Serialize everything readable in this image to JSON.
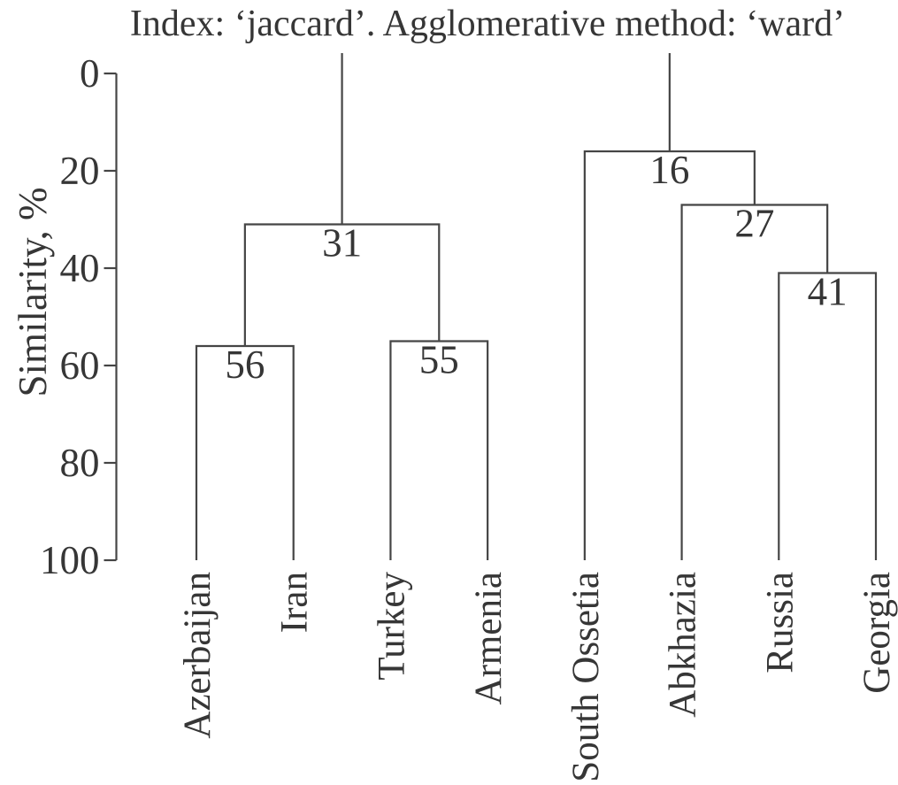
{
  "chart_data": {
    "type": "dendrogram",
    "title": "Index: ‘jaccard’. Agglomerative method: ‘ward’",
    "ylabel": "Similarity, %",
    "y_axis": {
      "ticks": [
        0,
        20,
        40,
        60,
        80,
        100
      ],
      "range": [
        0,
        100
      ],
      "direction": "inverted (0 at top, 100 at bottom)",
      "unit": "%"
    },
    "grid": "off",
    "legend": "none",
    "leaves": [
      "Azerbaijan",
      "Iran",
      "Turkey",
      "Armenia",
      "South Ossetia",
      "Abkhazia",
      "Russia",
      "Georgia"
    ],
    "merges": [
      {
        "id": "M1",
        "children": [
          "Azerbaijan",
          "Iran"
        ],
        "similarity_pct": 56,
        "label": "56"
      },
      {
        "id": "M2",
        "children": [
          "Turkey",
          "Armenia"
        ],
        "similarity_pct": 55,
        "label": "55"
      },
      {
        "id": "M3",
        "children": [
          "M1",
          "M2"
        ],
        "similarity_pct": 31,
        "label": "31"
      },
      {
        "id": "M4",
        "children": [
          "Russia",
          "Georgia"
        ],
        "similarity_pct": 41,
        "label": "41"
      },
      {
        "id": "M5",
        "children": [
          "Abkhazia",
          "M4"
        ],
        "similarity_pct": 27,
        "label": "27"
      },
      {
        "id": "M6",
        "children": [
          "South Ossetia",
          "M5"
        ],
        "similarity_pct": 16,
        "label": "16"
      }
    ],
    "roots": [
      "M3",
      "M6"
    ],
    "colors": {
      "line": "#454545",
      "text": "#363636",
      "background": "#ffffff"
    }
  }
}
